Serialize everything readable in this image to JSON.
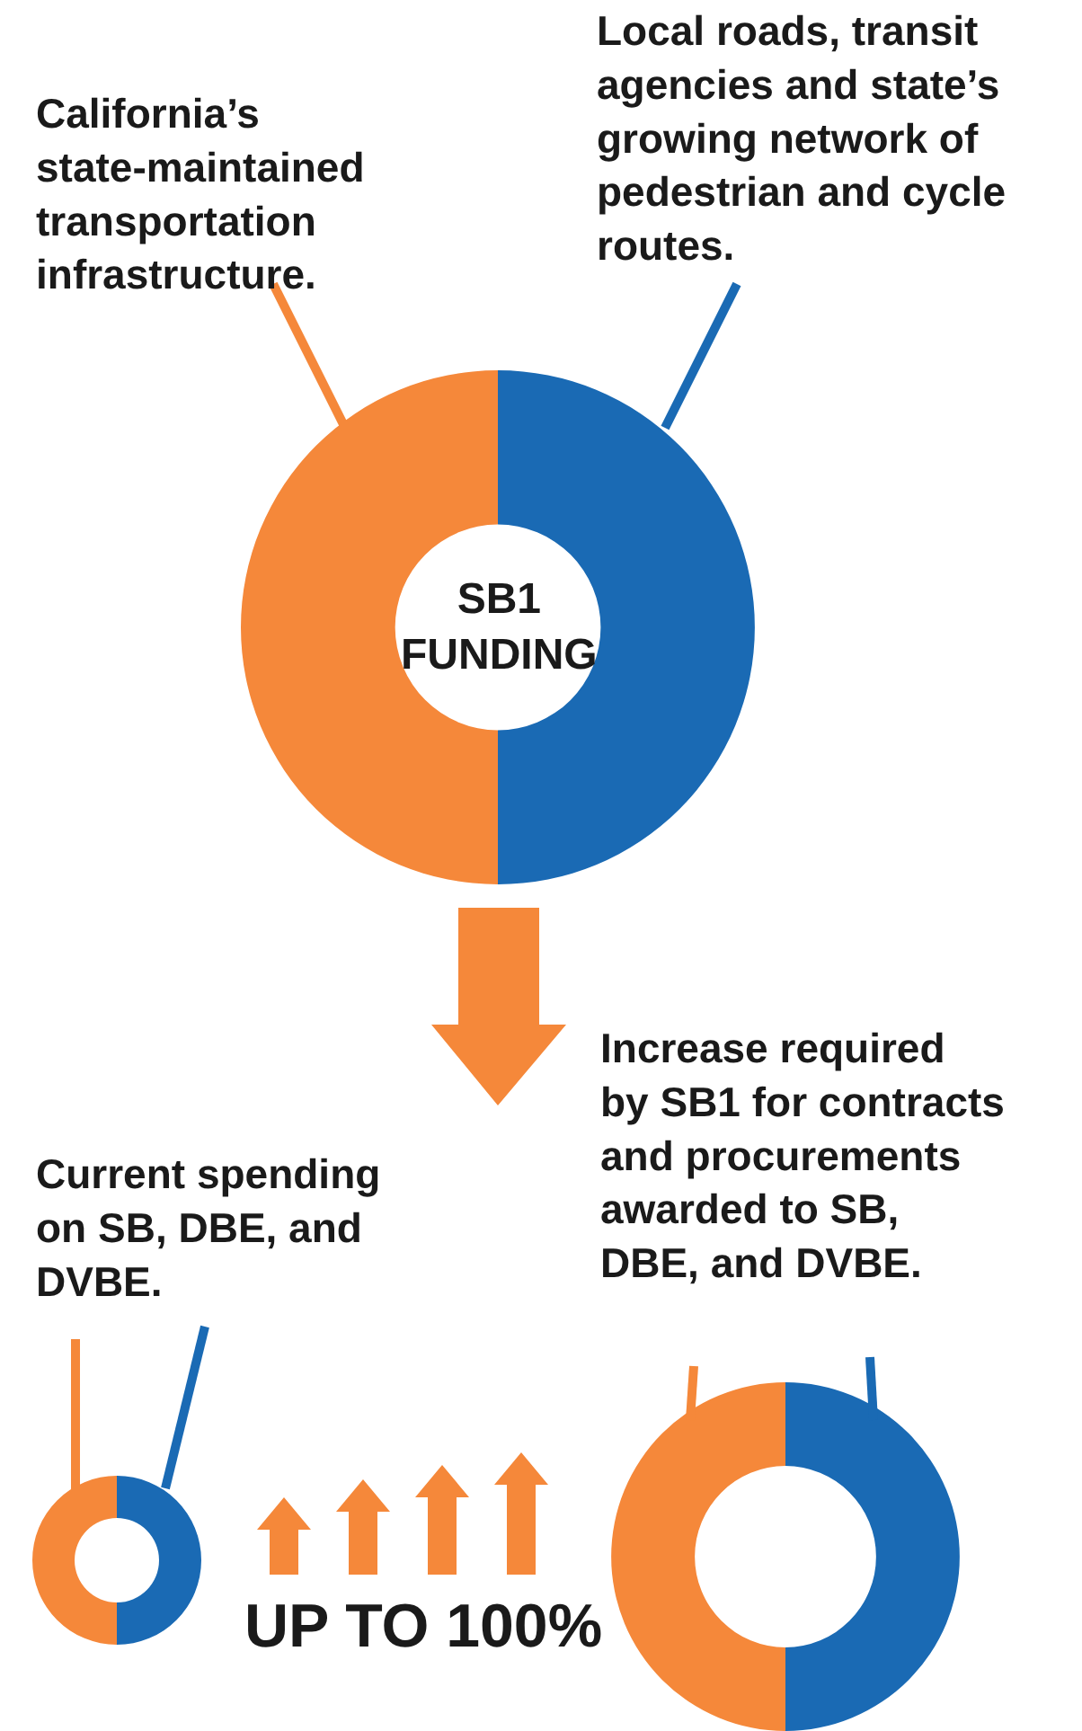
{
  "chart_data": [
    {
      "type": "donut",
      "categories": [
        "California’s\nstate-maintained\ntransportation\ninfrastructure.",
        "Local roads, transit\nagencies and state’s\ngrowing network of\npedestrian and cycle\nroutes."
      ],
      "values": [
        50,
        50
      ],
      "colors": [
        "#f5883a",
        "#1a6ab4"
      ],
      "annotations": [
        "SB1\nFUNDING"
      ]
    },
    {
      "type": "donut",
      "title": "Current spending\non SB, DBE, and\nDVBE.",
      "categories": [
        null,
        null
      ],
      "values": [
        50,
        50
      ],
      "colors": [
        "#f5883a",
        "#1a6ab4"
      ]
    },
    {
      "type": "donut",
      "title": "Increase required\nby SB1 for contracts\nand procurements\nawarded to SB,\nDBE, and DVBE.",
      "categories": [
        null,
        null
      ],
      "values": [
        50,
        50
      ],
      "colors": [
        "#f5883a",
        "#1a6ab4"
      ],
      "annotations": [
        "UP TO 100%"
      ]
    }
  ]
}
